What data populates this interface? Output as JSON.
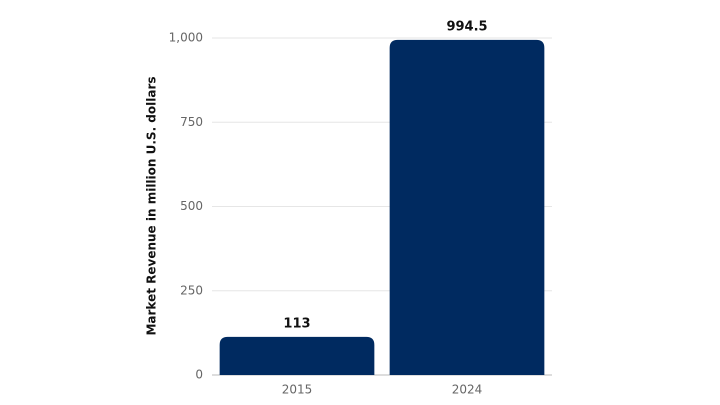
{
  "chart_data": {
    "type": "bar",
    "y_label": "Market Revenue in million U.S. dollars",
    "categories": [
      "2015",
      "2024"
    ],
    "values": [
      113,
      994.5
    ],
    "color": "#002a60",
    "ylim": [
      0,
      1000
    ],
    "yticks": [
      0,
      250,
      500,
      750,
      {
        "value": 1000,
        "label": "1,000"
      }
    ],
    "grid": true
  }
}
